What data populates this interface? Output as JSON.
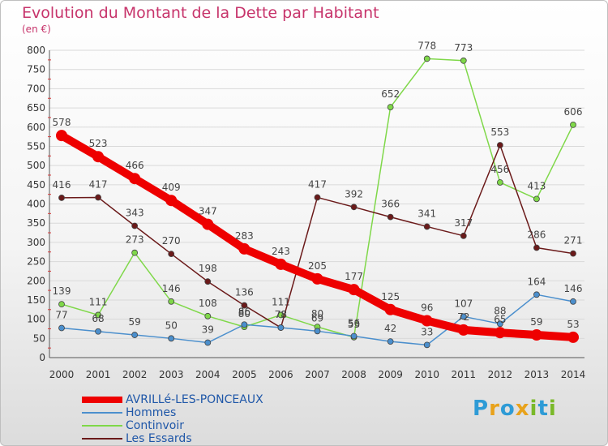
{
  "title": "Evolution du Montant de la Dette par Habitant",
  "unit": "(en €)",
  "logo": {
    "letters": [
      {
        "char": "P",
        "color": "#2e9bd6"
      },
      {
        "char": "r",
        "color": "#e8a21b"
      },
      {
        "char": "o",
        "color": "#2e9bd6"
      },
      {
        "char": "x",
        "color": "#e8a21b"
      },
      {
        "char": "i",
        "color": "#7ab929"
      },
      {
        "char": "t",
        "color": "#2e9bd6"
      },
      {
        "char": "i",
        "color": "#7ab929"
      }
    ]
  },
  "chart_data": {
    "type": "line",
    "title": "Evolution du Montant de la Dette par Habitant",
    "ylabel": "(en €)",
    "xlabel": "",
    "ylim": [
      0,
      800
    ],
    "yticks": [
      0,
      50,
      100,
      150,
      200,
      250,
      300,
      350,
      400,
      450,
      500,
      550,
      600,
      650,
      700,
      750,
      800
    ],
    "grid": "horizontal",
    "legend_position": "bottom-left",
    "x": [
      "2000",
      "2001",
      "2002",
      "2003",
      "2004",
      "2005",
      "2006",
      "2007",
      "2008",
      "2009",
      "2010",
      "2011",
      "2012",
      "2013",
      "2014"
    ],
    "series": [
      {
        "name": "AVRILLé-LES-PONCEAUX",
        "color": "#ee0000",
        "values": [
          578,
          523,
          466,
          409,
          347,
          283,
          243,
          205,
          177,
          125,
          96,
          72,
          65,
          59,
          53
        ]
      },
      {
        "name": "Hommes",
        "color": "#4b8fcd",
        "values": [
          77,
          68,
          59,
          50,
          39,
          86,
          78,
          69,
          56,
          42,
          33,
          107,
          88,
          164,
          146
        ]
      },
      {
        "name": "Continvoir",
        "color": "#7fd849",
        "values": [
          139,
          111,
          273,
          146,
          108,
          80,
          111,
          80,
          53,
          652,
          778,
          773,
          456,
          413,
          606
        ]
      },
      {
        "name": "Les Essards",
        "color": "#6b1a1a",
        "values": [
          416,
          417,
          343,
          270,
          198,
          136,
          78,
          417,
          392,
          366,
          341,
          317,
          553,
          286,
          271
        ]
      }
    ]
  }
}
